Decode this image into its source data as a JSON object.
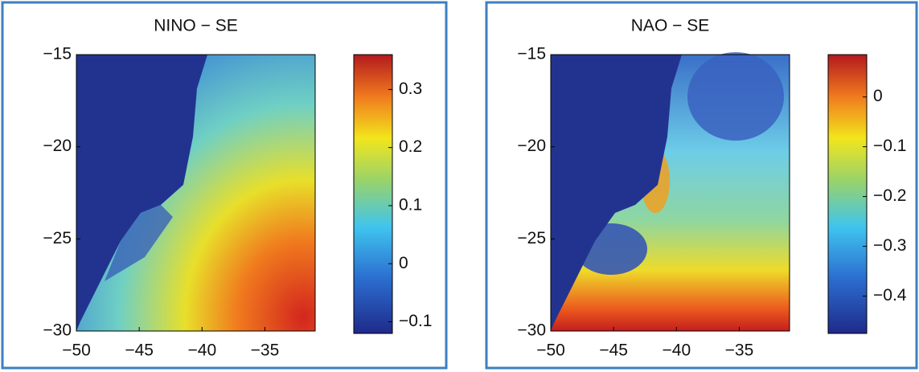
{
  "chart_data": [
    {
      "type": "heatmap",
      "title": "NINO − SE",
      "xlim": [
        -50,
        -31
      ],
      "ylim": [
        -30,
        -15
      ],
      "xticks": [
        -50,
        -45,
        -40,
        -35
      ],
      "yticks": [
        -30,
        -25,
        -20,
        -15
      ],
      "clim": [
        -0.12,
        0.36
      ],
      "cticks": [
        -0.1,
        0,
        0.1,
        0.2,
        0.3
      ]
    },
    {
      "type": "heatmap",
      "title": "NAO − SE",
      "xlim": [
        -50,
        -31
      ],
      "ylim": [
        -30,
        -15
      ],
      "xticks": [
        -50,
        -45,
        -40,
        -35
      ],
      "yticks": [
        -30,
        -25,
        -20,
        -15
      ],
      "clim": [
        -0.475,
        0.085
      ],
      "cticks": [
        -0.4,
        -0.3,
        -0.2,
        -0.1,
        0
      ]
    }
  ]
}
